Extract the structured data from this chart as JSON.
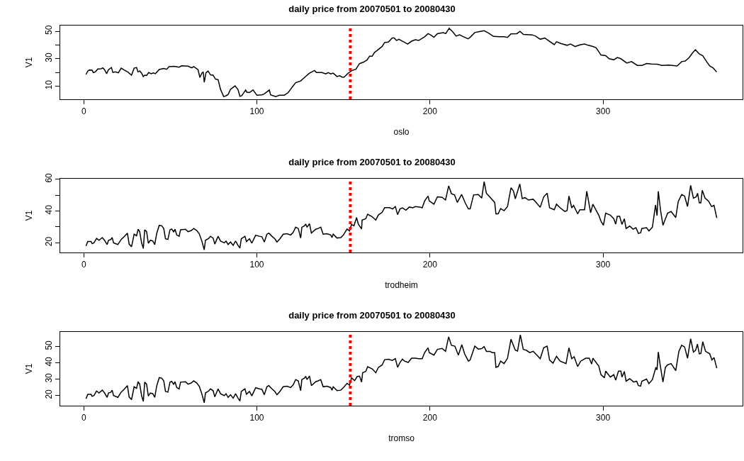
{
  "chart_data": [
    {
      "type": "line",
      "title": "daily price from 20070501 to 20080430",
      "xlabel": "oslo",
      "ylabel": "V1",
      "grid": false,
      "xlim": [
        -13.6,
        380.6
      ],
      "xticks": [
        0,
        100,
        200,
        300
      ],
      "ylim": [
        0.4,
        54.2
      ],
      "yticks": [
        10,
        {
          "value": 20,
          "label": null
        },
        30,
        {
          "value": 40,
          "label": null
        },
        50
      ],
      "ref_lines": [
        {
          "axis": "x",
          "value": 154,
          "color": "#ff0000",
          "line_style": "dotted"
        }
      ],
      "x": [
        1.3,
        2.3,
        3.3,
        4.8,
        5.5,
        6.7,
        8.1,
        10,
        11,
        12,
        13.2,
        14.3,
        16,
        16.8,
        18.2,
        20,
        21.6,
        23.3,
        25.5,
        27.6,
        29.1,
        30.5,
        31.3,
        32.4,
        33.4,
        34.4,
        35.2,
        36.3,
        37.5,
        38.9,
        40.2,
        41.4,
        43.6,
        46.2,
        47.9,
        49.3,
        52.2,
        55.1,
        56.5,
        60.2,
        62.4,
        63.5,
        66,
        67.1,
        68.2,
        69,
        69.6,
        70.6,
        71.8,
        73.2,
        74.7,
        76.1,
        77.6,
        79,
        80.8,
        82.2,
        83.4,
        84.8,
        87.4,
        89.1,
        90.2,
        91.3,
        93.5,
        94.2,
        95.7,
        97.8,
        100,
        102.9,
        104.3,
        107.2,
        107.9,
        110.9,
        113,
        115.9,
        118.1,
        120.3,
        122.4,
        125.3,
        127.5,
        130.4,
        133.3,
        134.4,
        137.6,
        139.8,
        141.2,
        142.7,
        144.1,
        146.3,
        147.8,
        149.2,
        150.4,
        152.8,
        155,
        157.2,
        159.3,
        161.5,
        163.6,
        165.1,
        166.6,
        168,
        169.5,
        172.4,
        173.8,
        176,
        178.2,
        179.3,
        180.7,
        182,
        184.7,
        187.1,
        189.4,
        191.5,
        193.5,
        196.9,
        198.9,
        200.3,
        202.3,
        204.3,
        207.7,
        209.1,
        211.1,
        213.2,
        215.1,
        217.1,
        219.4,
        222,
        223.2,
        225.9,
        228.6,
        231.3,
        234,
        236.7,
        240.1,
        242.8,
        244.8,
        246.8,
        250.2,
        252,
        254,
        259,
        261,
        263.7,
        266.4,
        268.4,
        271.8,
        273.1,
        275.8,
        279.2,
        281.2,
        283.9,
        286.6,
        289.3,
        291.4,
        294.1,
        296,
        298.8,
        301.5,
        303.5,
        306.2,
        308.2,
        310.3,
        313.7,
        316.4,
        319.8,
        322.5,
        325.2,
        327.9,
        331.2,
        334,
        338,
        342.8,
        345.4,
        347.5,
        349.8,
        351.5,
        353.3,
        355.5,
        357.6,
        359.6,
        361.6,
        363.6,
        365.6
      ],
      "series": [
        {
          "color": "#000000",
          "values": [
            18.5,
            21,
            21.8,
            21.6,
            19.9,
            20.4,
            22.5,
            22.7,
            23.3,
            22,
            19.1,
            22,
            23.6,
            20,
            20.4,
            19.7,
            23.1,
            21.8,
            20.2,
            18,
            23.1,
            23.6,
            20.4,
            21,
            19.5,
            17,
            18,
            17.8,
            19.9,
            19.1,
            19.7,
            19.1,
            22.1,
            22.9,
            22.3,
            24.2,
            24.4,
            23.8,
            24.8,
            24.6,
            23.3,
            24.2,
            22,
            16.3,
            19.5,
            20.4,
            12.8,
            19.7,
            21,
            18.2,
            18,
            15.1,
            14.7,
            7.7,
            2.4,
            3,
            3.9,
            7.7,
            10.2,
            7.5,
            2.6,
            3,
            7.2,
            5.6,
            5.3,
            7.2,
            3.4,
            3.6,
            4.3,
            7.2,
            3.7,
            2.4,
            3.4,
            3.4,
            5.3,
            9.1,
            12.5,
            13.8,
            16.3,
            19.5,
            21.4,
            19.9,
            19.9,
            18.9,
            19.9,
            18.9,
            19.5,
            17,
            17.6,
            16.6,
            16.6,
            19.5,
            21.4,
            22.3,
            26.5,
            27.4,
            29,
            31.8,
            31.8,
            34.6,
            36,
            39,
            41.8,
            42.2,
            45.1,
            45.1,
            43.3,
            44.2,
            42.4,
            40.7,
            42.8,
            43.8,
            43.3,
            46,
            48.3,
            47.4,
            45.6,
            48.3,
            49,
            48.3,
            52.2,
            49.5,
            46.5,
            47.4,
            46,
            44.5,
            45.6,
            49.1,
            49.8,
            50.4,
            48.6,
            46.3,
            46,
            46,
            45.6,
            48.1,
            48.3,
            50,
            47.7,
            47.4,
            46.5,
            44.2,
            45.1,
            43.3,
            40.3,
            42.4,
            41,
            39.8,
            40.7,
            38.9,
            40.1,
            40.7,
            39.8,
            38.9,
            38,
            32.7,
            32.2,
            30,
            29.2,
            30.9,
            30,
            26.8,
            27.9,
            25.1,
            25.1,
            26.5,
            26.1,
            26,
            25.1,
            25.4,
            24.7,
            27.9,
            28.3,
            30.9,
            33.9,
            36.6,
            33.6,
            32.2,
            28.3,
            24.7,
            23.3,
            20.3
          ]
        }
      ]
    },
    {
      "type": "line",
      "title": "daily price from 20070501 to 20080430",
      "xlabel": "trodheim",
      "ylabel": "V1",
      "grid": false,
      "xlim": [
        -13.6,
        380.6
      ],
      "xticks": [
        0,
        100,
        200,
        300
      ],
      "ylim": [
        13.9,
        60.3
      ],
      "yticks": [
        20,
        {
          "value": 30,
          "label": null
        },
        40,
        {
          "value": 50,
          "label": null
        },
        60
      ],
      "ref_lines": [
        {
          "axis": "x",
          "value": 154,
          "color": "#ff0000",
          "line_style": "dotted"
        }
      ],
      "x": [
        1.3,
        2.3,
        4.2,
        4.8,
        5.9,
        7.4,
        8.8,
        10.7,
        12,
        13.5,
        14.3,
        15.6,
        16.4,
        17.2,
        19.7,
        21.6,
        23.3,
        25.2,
        26.2,
        27.6,
        29.1,
        30.5,
        31.4,
        32.3,
        33.4,
        34.4,
        35.2,
        36.3,
        37.3,
        38.5,
        39.9,
        41,
        42.1,
        43.6,
        45,
        46.2,
        47.2,
        48.6,
        49.8,
        50.8,
        51.9,
        52.7,
        53.7,
        55.1,
        55.9,
        58.8,
        60.2,
        62.1,
        63.5,
        65.3,
        66.7,
        68.2,
        69.6,
        70.3,
        72.2,
        73.2,
        74.7,
        75.7,
        77.6,
        79,
        81.2,
        82.2,
        83.4,
        84.8,
        86.3,
        87.7,
        89.1,
        90.2,
        91,
        93.1,
        94,
        95.7,
        97.1,
        99.3,
        101.4,
        102.9,
        104.3,
        105.8,
        106.9,
        108.7,
        110.4,
        111.6,
        113.3,
        115.2,
        117.4,
        119.5,
        121,
        122.4,
        123.9,
        125.3,
        126,
        127.5,
        128.2,
        129,
        130.4,
        131.5,
        134,
        135.4,
        136.9,
        138.3,
        140.5,
        142.7,
        143.4,
        144.1,
        146.3,
        148.5,
        150,
        152.1,
        153.5,
        154.7,
        156.1,
        157.6,
        158.6,
        160.5,
        160.8,
        162.9,
        164,
        166.6,
        168.7,
        170.2,
        172.4,
        173.8,
        176.7,
        178.4,
        180,
        181.3,
        182.7,
        184.1,
        186.1,
        188.1,
        190.1,
        191.5,
        194.2,
        195.5,
        196.9,
        198.9,
        199.6,
        202.3,
        204.3,
        207,
        209,
        210.8,
        212.4,
        214.2,
        215.8,
        218.3,
        220.5,
        222.2,
        223.2,
        225.2,
        227.9,
        229.9,
        231.3,
        232.6,
        237.4,
        238.1,
        239.4,
        240.8,
        242.8,
        244.8,
        246.8,
        248.2,
        249.3,
        251.9,
        253.3,
        254.9,
        256.9,
        259.6,
        261,
        263.7,
        265.7,
        267.7,
        269.1,
        271.8,
        273.1,
        275.2,
        277.9,
        279.2,
        280.3,
        281.9,
        283,
        285.3,
        286.6,
        289.3,
        290.6,
        292.8,
        294.1,
        297.5,
        298.8,
        300.2,
        301.5,
        304.2,
        306.2,
        307.3,
        308.2,
        309.6,
        310.9,
        312.3,
        313.3,
        315.4,
        317.3,
        319,
        320.4,
        321.7,
        322.4,
        325.1,
        326.5,
        328.5,
        330.3,
        331.2,
        331.9,
        333.2,
        334.6,
        336,
        337.3,
        339.3,
        342,
        343.4,
        345.4,
        347.1,
        348.8,
        350.6,
        352.2,
        353.8,
        354.6,
        355.6,
        356.5,
        357.3,
        358.9,
        360.9,
        362.7,
        364.1,
        365.7
      ],
      "series": [
        {
          "color": "#000000",
          "values": [
            18,
            20.8,
            20.8,
            19.5,
            20,
            22.8,
            21.6,
            23.3,
            21.6,
            18.9,
            21.6,
            22,
            23.3,
            20,
            18.9,
            22.1,
            23.8,
            26.1,
            19.2,
            17.5,
            25.4,
            24.4,
            28.5,
            27,
            20,
            16.4,
            28.2,
            27,
            19.7,
            21.6,
            21.1,
            18.9,
            25.7,
            31,
            30.7,
            29,
            22.5,
            22.1,
            28.2,
            28.7,
            26.9,
            28.5,
            24.9,
            24.1,
            28.2,
            28.5,
            27,
            27.7,
            29,
            27.7,
            25.7,
            21.1,
            15.6,
            21.6,
            22.8,
            24.1,
            23,
            19.2,
            24.1,
            21.1,
            20,
            21.1,
            18.9,
            20.5,
            18.4,
            21.1,
            18.4,
            16.7,
            22.5,
            24.1,
            20.8,
            22.5,
            19.8,
            24.8,
            24.1,
            23.8,
            20.5,
            25.4,
            26.1,
            24.1,
            22.5,
            20.5,
            22.5,
            25.4,
            25.7,
            24.9,
            26.6,
            29.8,
            29,
            23,
            29.8,
            30.7,
            31.8,
            29.8,
            32,
            26.1,
            28.5,
            29,
            29.8,
            25.4,
            25.7,
            24.9,
            23.3,
            25.4,
            23,
            23.3,
            24.9,
            28.7,
            27.4,
            31.5,
            30.7,
            35.9,
            31.8,
            28.7,
            34.3,
            35.1,
            38,
            36.4,
            34.3,
            37.5,
            39.2,
            42.1,
            42.1,
            41.3,
            42.8,
            37.7,
            41.3,
            42,
            40.5,
            42.5,
            42,
            42.8,
            42.5,
            42,
            46.3,
            49.4,
            46.3,
            44.3,
            48.9,
            48.6,
            46.9,
            55.8,
            50.9,
            50.1,
            45.4,
            50.4,
            44.8,
            41.3,
            41.3,
            50.1,
            50.4,
            48.1,
            58.5,
            51.2,
            45.4,
            38.2,
            38.2,
            41.5,
            40.2,
            42.8,
            54.6,
            52.7,
            47.7,
            57,
            47.8,
            48.4,
            46.9,
            47.4,
            45.8,
            42.3,
            48.9,
            51.2,
            42,
            40.8,
            44.3,
            42,
            39.7,
            40.2,
            49.4,
            42,
            43.5,
            38.2,
            40.8,
            40.8,
            52.4,
            38.9,
            44.3,
            37.4,
            33.6,
            31,
            38.6,
            37.4,
            35.1,
            31.8,
            36.6,
            36.6,
            31.6,
            35.1,
            29,
            30.5,
            28.6,
            29.5,
            25.9,
            26.3,
            29,
            29.5,
            27.5,
            29.8,
            43.8,
            37.1,
            52.4,
            40.5,
            31,
            35.1,
            38.6,
            39.7,
            35.9,
            45.8,
            50.4,
            49.4,
            42.8,
            56.1,
            48.1,
            48.9,
            51.2,
            45.1,
            45.1,
            53,
            48.1,
            46.3,
            42.8,
            43.5,
            35.6
          ]
        }
      ]
    },
    {
      "type": "line",
      "title": "daily price from 20070501 to 20080430",
      "xlabel": "tromso",
      "ylabel": "V1",
      "grid": false,
      "xlim": [
        -13.6,
        380.6
      ],
      "xticks": [
        0,
        100,
        200,
        300
      ],
      "ylim": [
        13.8,
        59
      ],
      "yticks": [
        20,
        30,
        40,
        50
      ],
      "ref_lines": [
        {
          "axis": "x",
          "value": 154,
          "color": "#ff0000",
          "line_style": "dotted"
        }
      ],
      "x": [
        1.3,
        2.3,
        4.2,
        4.8,
        5.9,
        7.4,
        8.8,
        10.7,
        12,
        13.5,
        14.3,
        15.6,
        16.4,
        17.2,
        19.7,
        21.6,
        23.3,
        25.2,
        26.2,
        27.6,
        29.1,
        30.5,
        31.4,
        32.3,
        33.4,
        34.4,
        35.2,
        36.3,
        37.3,
        38.5,
        39.9,
        41,
        42.1,
        43.6,
        45,
        46.2,
        47.2,
        48.6,
        49.8,
        50.8,
        51.9,
        52.7,
        53.7,
        55.1,
        55.9,
        58.8,
        60.2,
        62.1,
        63.5,
        65.3,
        66.7,
        68.2,
        69.6,
        70.3,
        72.2,
        73.2,
        74.7,
        75.7,
        77.6,
        79,
        81.2,
        82.2,
        83.4,
        84.8,
        86.3,
        87.7,
        89.1,
        90.2,
        91,
        93.1,
        94,
        95.7,
        97.1,
        99.3,
        101.4,
        102.9,
        104.3,
        105.8,
        106.9,
        108.7,
        110.4,
        111.6,
        113.3,
        115.2,
        117.4,
        119.5,
        121,
        122.4,
        123.9,
        125.3,
        126,
        127.5,
        128.2,
        129,
        130.4,
        131.5,
        134,
        135.4,
        136.9,
        138.3,
        140.5,
        142.7,
        143.4,
        144.1,
        146.3,
        148.5,
        150,
        152.1,
        153.5,
        154.7,
        156.5,
        157.9,
        159.3,
        160.5,
        161.1,
        162.9,
        164,
        166.6,
        168.7,
        170.2,
        172.4,
        173.8,
        176,
        178.2,
        178.6,
        180,
        181.3,
        182.7,
        184.1,
        185.3,
        187.4,
        189.4,
        191.5,
        193.5,
        195.5,
        196.9,
        198.9,
        199.6,
        202.3,
        204.3,
        207,
        209,
        210.8,
        212.4,
        214.4,
        216.4,
        218.4,
        220,
        222.2,
        223.2,
        225.9,
        227.9,
        229.9,
        231.3,
        232.6,
        234.6,
        236,
        237.4,
        238.1,
        239.4,
        240.8,
        242.8,
        244.8,
        246.8,
        249.3,
        250.6,
        252.2,
        253.9,
        255.6,
        257.6,
        259.6,
        261,
        263.7,
        265.7,
        267.7,
        269.1,
        271.1,
        273.1,
        275.2,
        278.6,
        280.3,
        281.9,
        283.3,
        285.3,
        287.1,
        290,
        292,
        293.4,
        294.1,
        297.5,
        298.8,
        300.8,
        301.5,
        304.2,
        306.2,
        307.3,
        308.9,
        310.3,
        310.9,
        312.3,
        313.3,
        315.4,
        317.7,
        319.4,
        320.4,
        321.7,
        322.4,
        325.1,
        326.5,
        328.5,
        330.5,
        331.2,
        331.9,
        333.2,
        334.6,
        336,
        337.3,
        339.3,
        342,
        343.8,
        345.4,
        347.1,
        348.8,
        350.6,
        352.2,
        353.5,
        354.5,
        355.6,
        356.5,
        357.6,
        359.2,
        361.6,
        362.9,
        364.1,
        365.7
      ],
      "series": [
        {
          "color": "#000000",
          "values": [
            18,
            20.8,
            20.8,
            19.5,
            20,
            22.8,
            21.6,
            23.3,
            21.6,
            18.9,
            21.6,
            22,
            23.3,
            20,
            18.9,
            22.1,
            23.8,
            26.1,
            19.2,
            17.5,
            25.4,
            24.4,
            28.5,
            27,
            20,
            16.4,
            28.2,
            27,
            19.7,
            21.6,
            21.1,
            18.9,
            25.7,
            31,
            30.7,
            29,
            22.5,
            22.1,
            28.2,
            28.7,
            26.9,
            28.5,
            24.9,
            24.1,
            28.2,
            28.5,
            27,
            27.7,
            29,
            27.7,
            25.7,
            21.1,
            15.6,
            21.6,
            22.8,
            24.1,
            23,
            19.2,
            24.1,
            21.1,
            20,
            21.1,
            18.9,
            20.5,
            18.4,
            21.1,
            18.4,
            16.7,
            22.5,
            24.1,
            20.8,
            22.5,
            19.8,
            24.8,
            24.1,
            23.8,
            20.5,
            25.4,
            26.1,
            24.1,
            22.5,
            20.5,
            22.5,
            25.4,
            25.7,
            24.9,
            26.6,
            29.8,
            29,
            23,
            29.8,
            30.7,
            31.8,
            29.8,
            32,
            26.1,
            28.5,
            29,
            29.8,
            25.4,
            25.7,
            24.9,
            23.3,
            25.4,
            23,
            23.3,
            24.9,
            27.5,
            26.4,
            30.8,
            29.2,
            31.6,
            31.9,
            28.3,
            34,
            34.8,
            37.7,
            36.4,
            34,
            37.2,
            38.8,
            42,
            42.3,
            41.5,
            41.8,
            42.6,
            37.3,
            40.3,
            42.3,
            41.1,
            40.3,
            42.9,
            42.9,
            42.6,
            42.6,
            46.3,
            49.3,
            46.3,
            44.8,
            48.3,
            48.9,
            47.1,
            56,
            50.8,
            50.3,
            44.8,
            51.2,
            45.6,
            41.1,
            41.8,
            50.3,
            48.5,
            48.8,
            50,
            47.1,
            47.1,
            46.3,
            46.3,
            37.3,
            37.8,
            41.1,
            39.6,
            42.9,
            54.5,
            47.8,
            47.3,
            57.2,
            48.3,
            47.8,
            46.3,
            47.1,
            45.6,
            42.6,
            49.3,
            50.3,
            41.8,
            39.9,
            44,
            41.1,
            39.6,
            49.3,
            42.6,
            43.8,
            37.8,
            41.1,
            42.9,
            42.9,
            39.3,
            42.9,
            38.1,
            32.8,
            30.9,
            35,
            31.3,
            32.8,
            29.4,
            35,
            35,
            31.3,
            34.7,
            28.8,
            30.3,
            28.3,
            28.8,
            26.1,
            25.8,
            28.8,
            30.1,
            27.3,
            29.8,
            37.3,
            35.8,
            46.7,
            37.3,
            28.3,
            37.3,
            38.8,
            39.6,
            35.3,
            47.1,
            50.8,
            49.8,
            42.9,
            54.8,
            46.7,
            47.8,
            51.5,
            45.6,
            45.8,
            53,
            47.1,
            45.6,
            41.8,
            43.3,
            36.8
          ]
        }
      ]
    }
  ]
}
